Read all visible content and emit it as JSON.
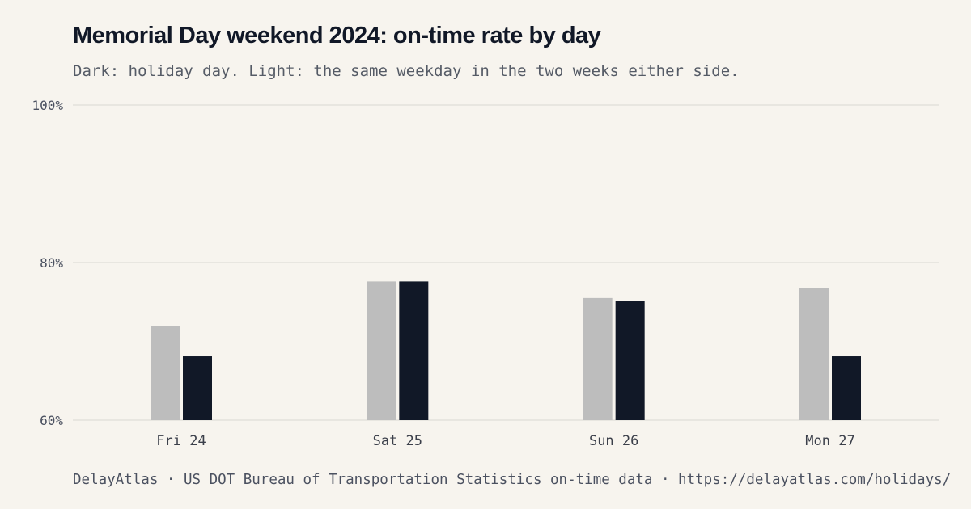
{
  "title": "Memorial Day weekend 2024: on-time rate by day",
  "subtitle": "Dark: holiday day. Light: the same weekday in the two weeks either side.",
  "source": "DelayAtlas · US DOT Bureau of Transportation Statistics on-time data · https://delayatlas.com/holidays/",
  "colors": {
    "background": "#f7f4ee",
    "baseline": "#bdbdbd",
    "holiday": "#111827",
    "grid": "#e4e1db",
    "tick_text": "#4b5160"
  },
  "chart_data": {
    "type": "bar",
    "categories": [
      "Fri 24",
      "Sat 25",
      "Sun 26",
      "Mon 27"
    ],
    "series": [
      {
        "key": "baseline",
        "values": [
          72.0,
          77.6,
          75.5,
          76.8
        ]
      },
      {
        "key": "holiday",
        "values": [
          68.1,
          77.6,
          75.1,
          68.1
        ]
      }
    ],
    "ylim": [
      60,
      100
    ],
    "yticks": [
      {
        "value": 60,
        "label": "60%"
      },
      {
        "value": 80,
        "label": "80%"
      },
      {
        "value": 100,
        "label": "100%"
      }
    ],
    "grid": true,
    "legend": "none"
  }
}
